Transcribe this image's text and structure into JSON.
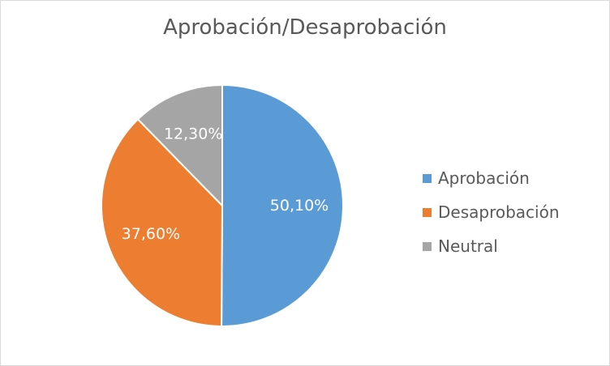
{
  "chart_data": {
    "type": "pie",
    "title": "Aprobación/Desaprobación",
    "categories": [
      "Aprobación",
      "Desaprobación",
      "Neutral"
    ],
    "values": [
      50.1,
      37.6,
      12.3
    ],
    "data_labels": [
      "50,10%",
      "37,60%",
      "12,30%"
    ],
    "colors": [
      "#5b9bd5",
      "#ed7d31",
      "#a5a5a5"
    ],
    "legend": {
      "position": "right",
      "entries": [
        "Aprobación",
        "Desaprobación",
        "Neutral"
      ]
    }
  }
}
